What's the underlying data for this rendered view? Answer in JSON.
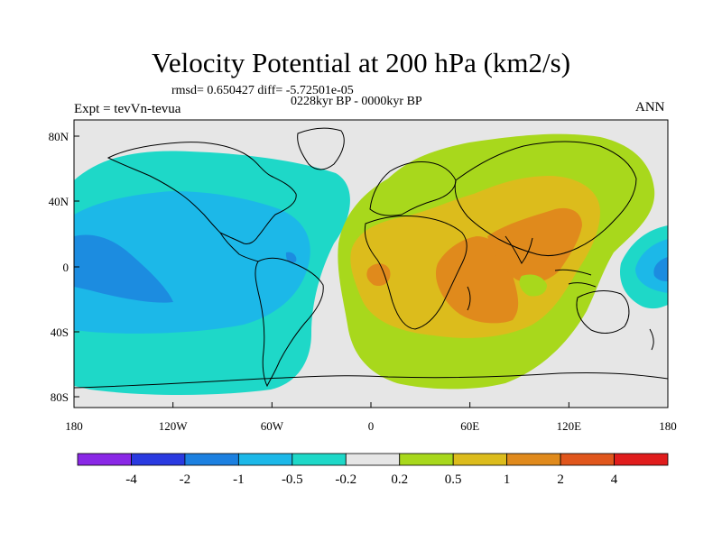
{
  "title": "Velocity Potential at 200 hPa (km2/s)",
  "stats": "rmsd= 0.650427  diff= -5.72501e-05",
  "period": "0228kyr BP - 0000kyr BP",
  "experiment": "Expt = tevVn-tevua",
  "season": "ANN",
  "map": {
    "lat_ticks": [
      "80N",
      "40N",
      "0",
      "40S",
      "80S"
    ],
    "lon_ticks": [
      "180",
      "120W",
      "60W",
      "0",
      "60E",
      "120E",
      "180"
    ],
    "background_color": "#e6e6e6",
    "coastline_color": "#000000"
  },
  "colorbar": {
    "labels": [
      "-4",
      "-2",
      "-1",
      "-0.5",
      "-0.2",
      "0.2",
      "0.5",
      "1",
      "2",
      "4"
    ],
    "colors": [
      "#8a28e6",
      "#2a3ae0",
      "#1c80e0",
      "#1cb8e8",
      "#1ed8c8",
      "#e6e6e6",
      "#a8d81c",
      "#dcbc1c",
      "#e08a1c",
      "#e0561c",
      "#e01c1c"
    ]
  },
  "field_colors": {
    "neg_05_1": "#1cb8e8",
    "neg_1_2": "#1c8ce0",
    "neg_02_05": "#1ed8c8",
    "pos_02_05": "#a8d81c",
    "pos_05_1": "#dcbc1c",
    "pos_1_2": "#e08a1c"
  }
}
